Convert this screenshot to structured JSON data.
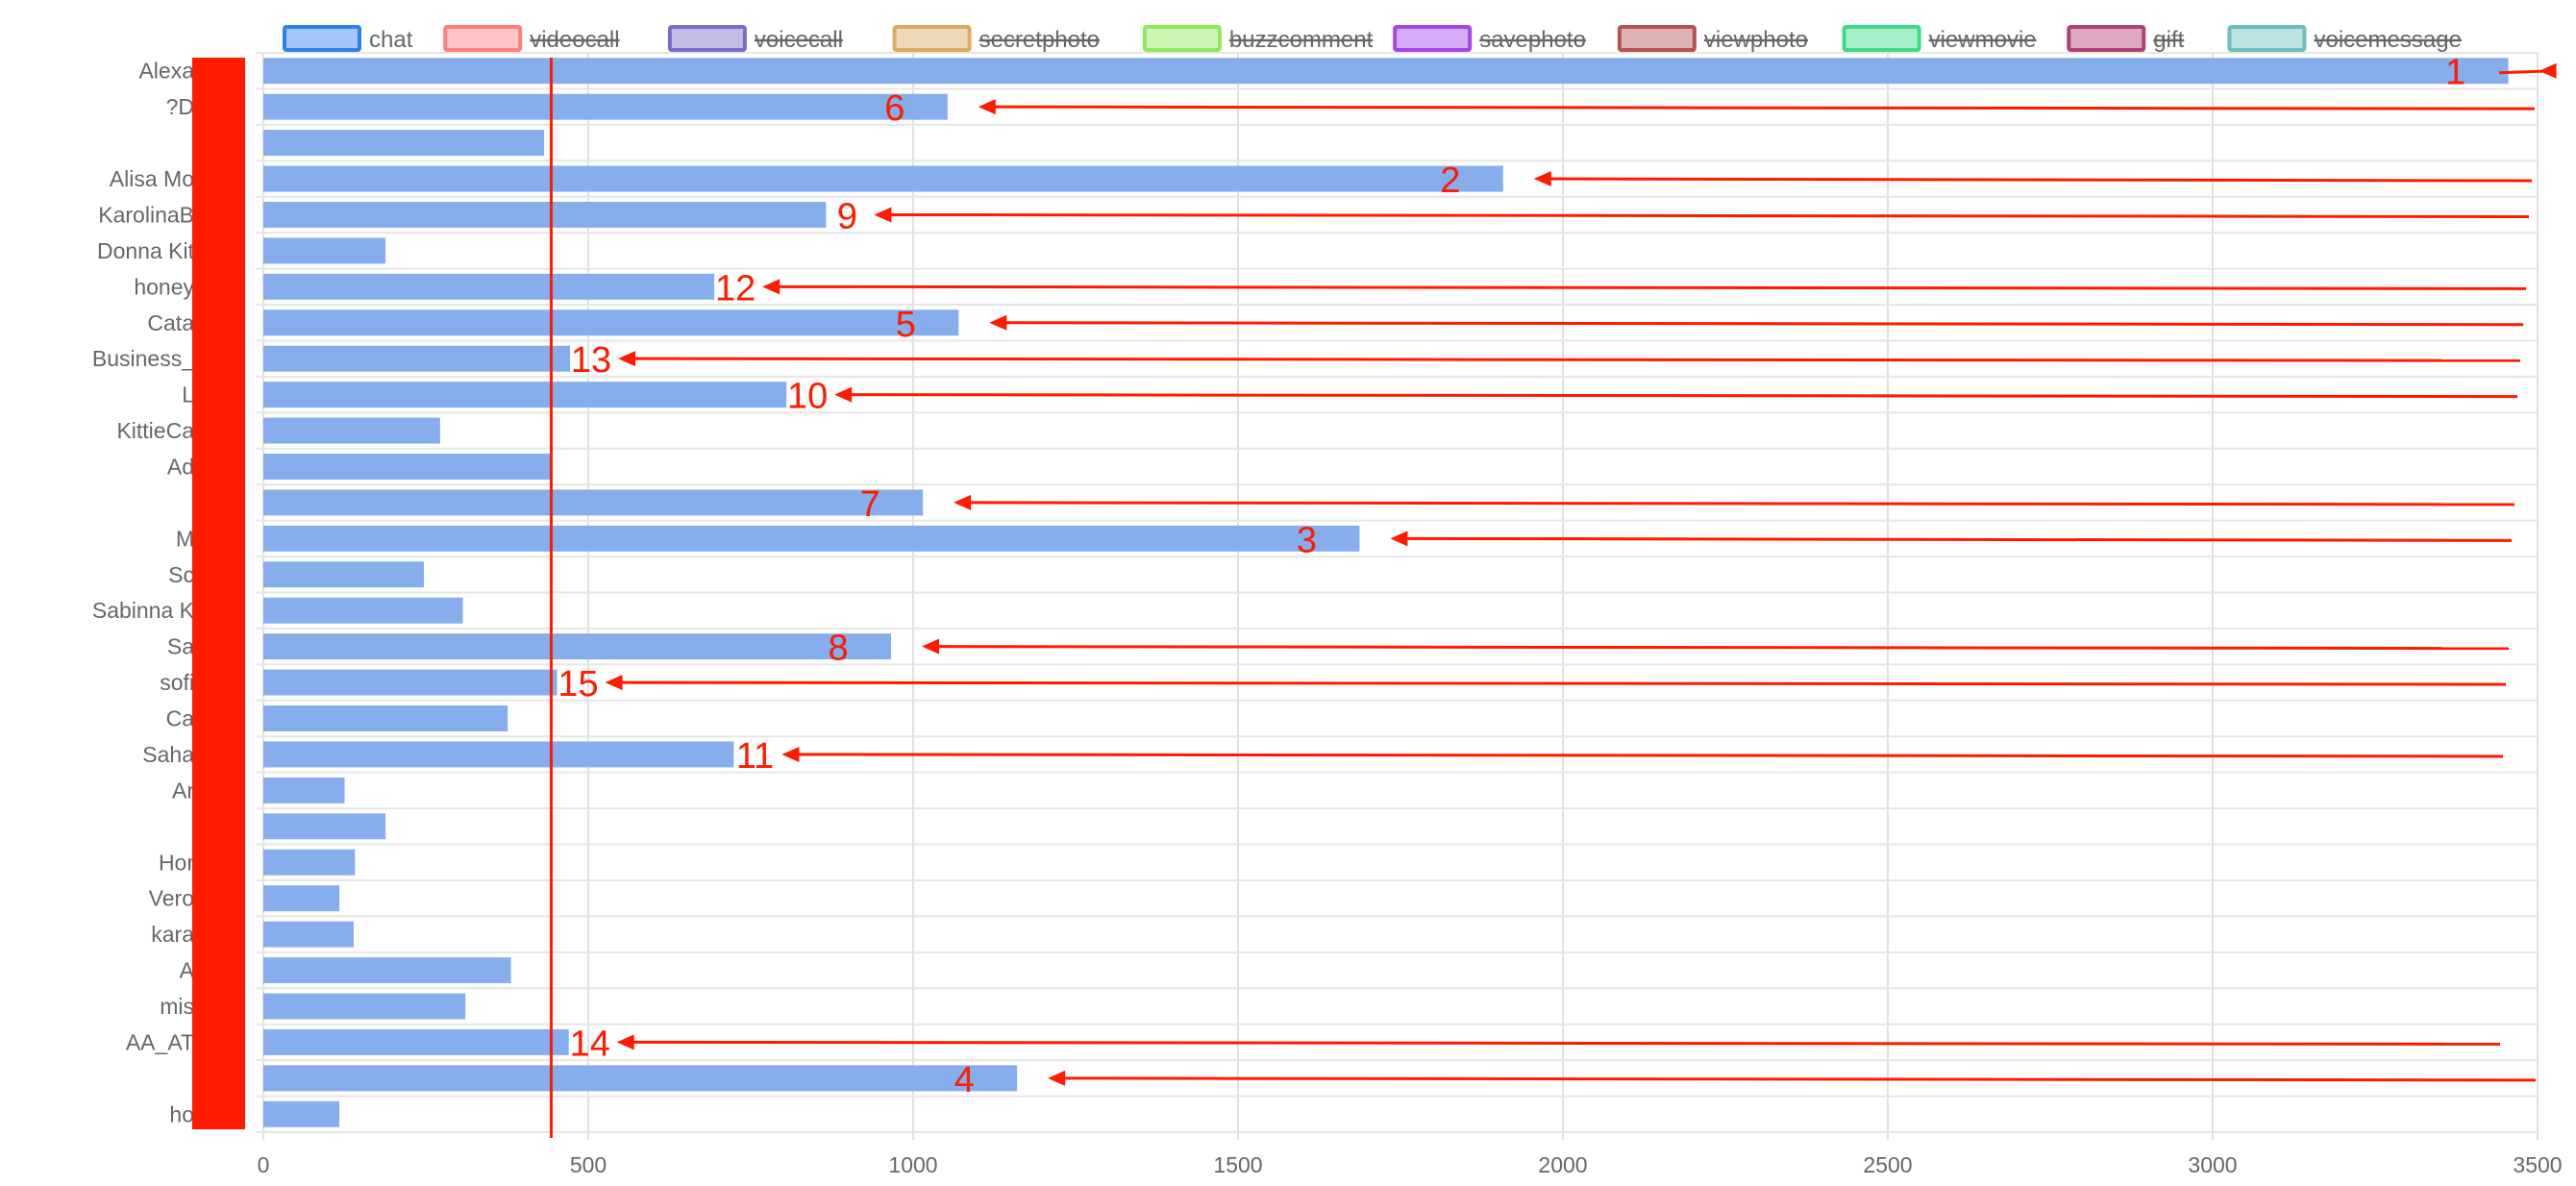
{
  "chart_data": {
    "type": "bar",
    "orientation": "horizontal",
    "xlim": [
      0,
      3500
    ],
    "x_ticks": [
      "0",
      "500",
      "1000",
      "1500",
      "2000",
      "2500",
      "3000",
      "3500"
    ],
    "grid": true,
    "legend_position": "top",
    "legend": [
      {
        "label": "chat",
        "color": "#2f80ed",
        "hidden": false
      },
      {
        "label": "videocall",
        "color": "#ff7f7f",
        "hidden": true
      },
      {
        "label": "voicecall",
        "color": "#7a6cc8",
        "hidden": true
      },
      {
        "label": "secretphoto",
        "color": "#d8ab60",
        "hidden": true
      },
      {
        "label": "buzzcomment",
        "color": "#8ee85a",
        "hidden": true
      },
      {
        "label": "savephoto",
        "color": "#a544e8",
        "hidden": true
      },
      {
        "label": "viewphoto",
        "color": "#b35454",
        "hidden": true
      },
      {
        "label": "viewmovie",
        "color": "#3ddc84",
        "hidden": true
      },
      {
        "label": "gift",
        "color": "#b0407a",
        "hidden": true
      },
      {
        "label": "voicemessage",
        "color": "#6cbfbf",
        "hidden": true
      }
    ],
    "categories": [
      "Alexa",
      "?D",
      "",
      "Alisa Mo",
      "KarolinaB",
      "Donna Kit",
      "honey",
      "Cata",
      "Business_",
      "L",
      "KittieCa",
      "Ad",
      "",
      "M",
      "Sc",
      "Sabinna K",
      "Sa",
      "sofi",
      "Ca",
      "Saha",
      "Ar",
      "",
      "Hor",
      "Vero",
      "kara",
      "A",
      "mis",
      "AA_AT",
      "",
      "ho"
    ],
    "series": [
      {
        "name": "chat",
        "color": "#86aeec",
        "values": [
          3455,
          1053,
          432,
          1908,
          866,
          188,
          694,
          1070,
          472,
          805,
          272,
          445,
          1015,
          1687,
          247,
          307,
          966,
          452,
          376,
          724,
          125,
          188,
          141,
          117,
          139,
          381,
          311,
          470,
          1160,
          117
        ]
      }
    ],
    "annotations": {
      "color": "#ff1a00",
      "reference_line_x": 443,
      "rank_labels": [
        {
          "category_index": 0,
          "text": "1"
        },
        {
          "category_index": 1,
          "text": "6"
        },
        {
          "category_index": 3,
          "text": "2"
        },
        {
          "category_index": 4,
          "text": "9"
        },
        {
          "category_index": 6,
          "text": "12"
        },
        {
          "category_index": 7,
          "text": "5"
        },
        {
          "category_index": 8,
          "text": "13"
        },
        {
          "category_index": 9,
          "text": "10"
        },
        {
          "category_index": 12,
          "text": "7"
        },
        {
          "category_index": 13,
          "text": "3"
        },
        {
          "category_index": 16,
          "text": "8"
        },
        {
          "category_index": 17,
          "text": "15"
        },
        {
          "category_index": 19,
          "text": "11"
        },
        {
          "category_index": 27,
          "text": "14"
        },
        {
          "category_index": 28,
          "text": "4"
        }
      ]
    }
  }
}
